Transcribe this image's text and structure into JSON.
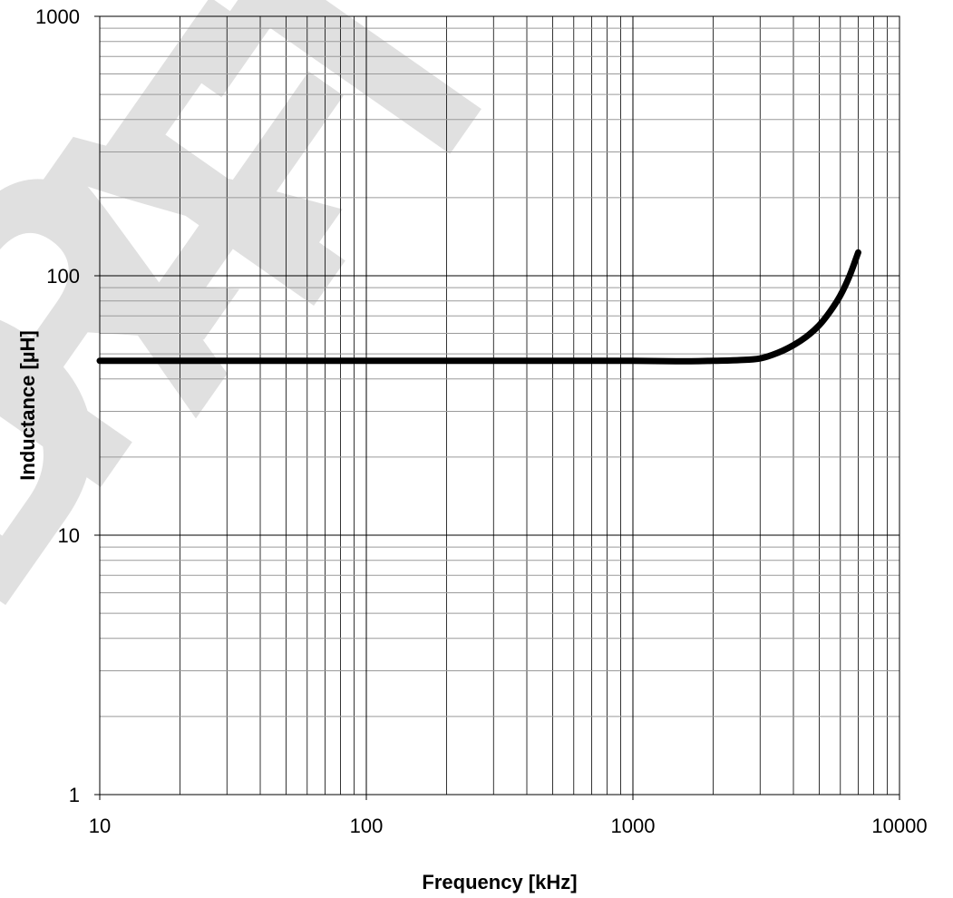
{
  "chart_data": {
    "type": "line",
    "xscale": "log",
    "yscale": "log",
    "xlim": [
      10,
      10000
    ],
    "ylim": [
      1,
      1000
    ],
    "grid": true,
    "xlabel": "Frequency [kHz]",
    "ylabel": "Inductance [µH]",
    "x_tick_labels": [
      "10",
      "100",
      "1000",
      "10000"
    ],
    "y_tick_labels": [
      "1",
      "10",
      "100",
      "1000"
    ],
    "watermark": "DRAFT",
    "series": [
      {
        "x": [
          10,
          20,
          50,
          100,
          200,
          500,
          1000,
          1500,
          2000,
          2500,
          3000,
          3500,
          4000,
          4500,
          5000,
          5500,
          6000,
          6500,
          7000
        ],
        "y": [
          47,
          47,
          47,
          47,
          47,
          47,
          47,
          46.8,
          47,
          47.3,
          48,
          50.5,
          54,
          58.5,
          64.5,
          73,
          84,
          100,
          123
        ],
        "color": "#000000"
      }
    ]
  }
}
